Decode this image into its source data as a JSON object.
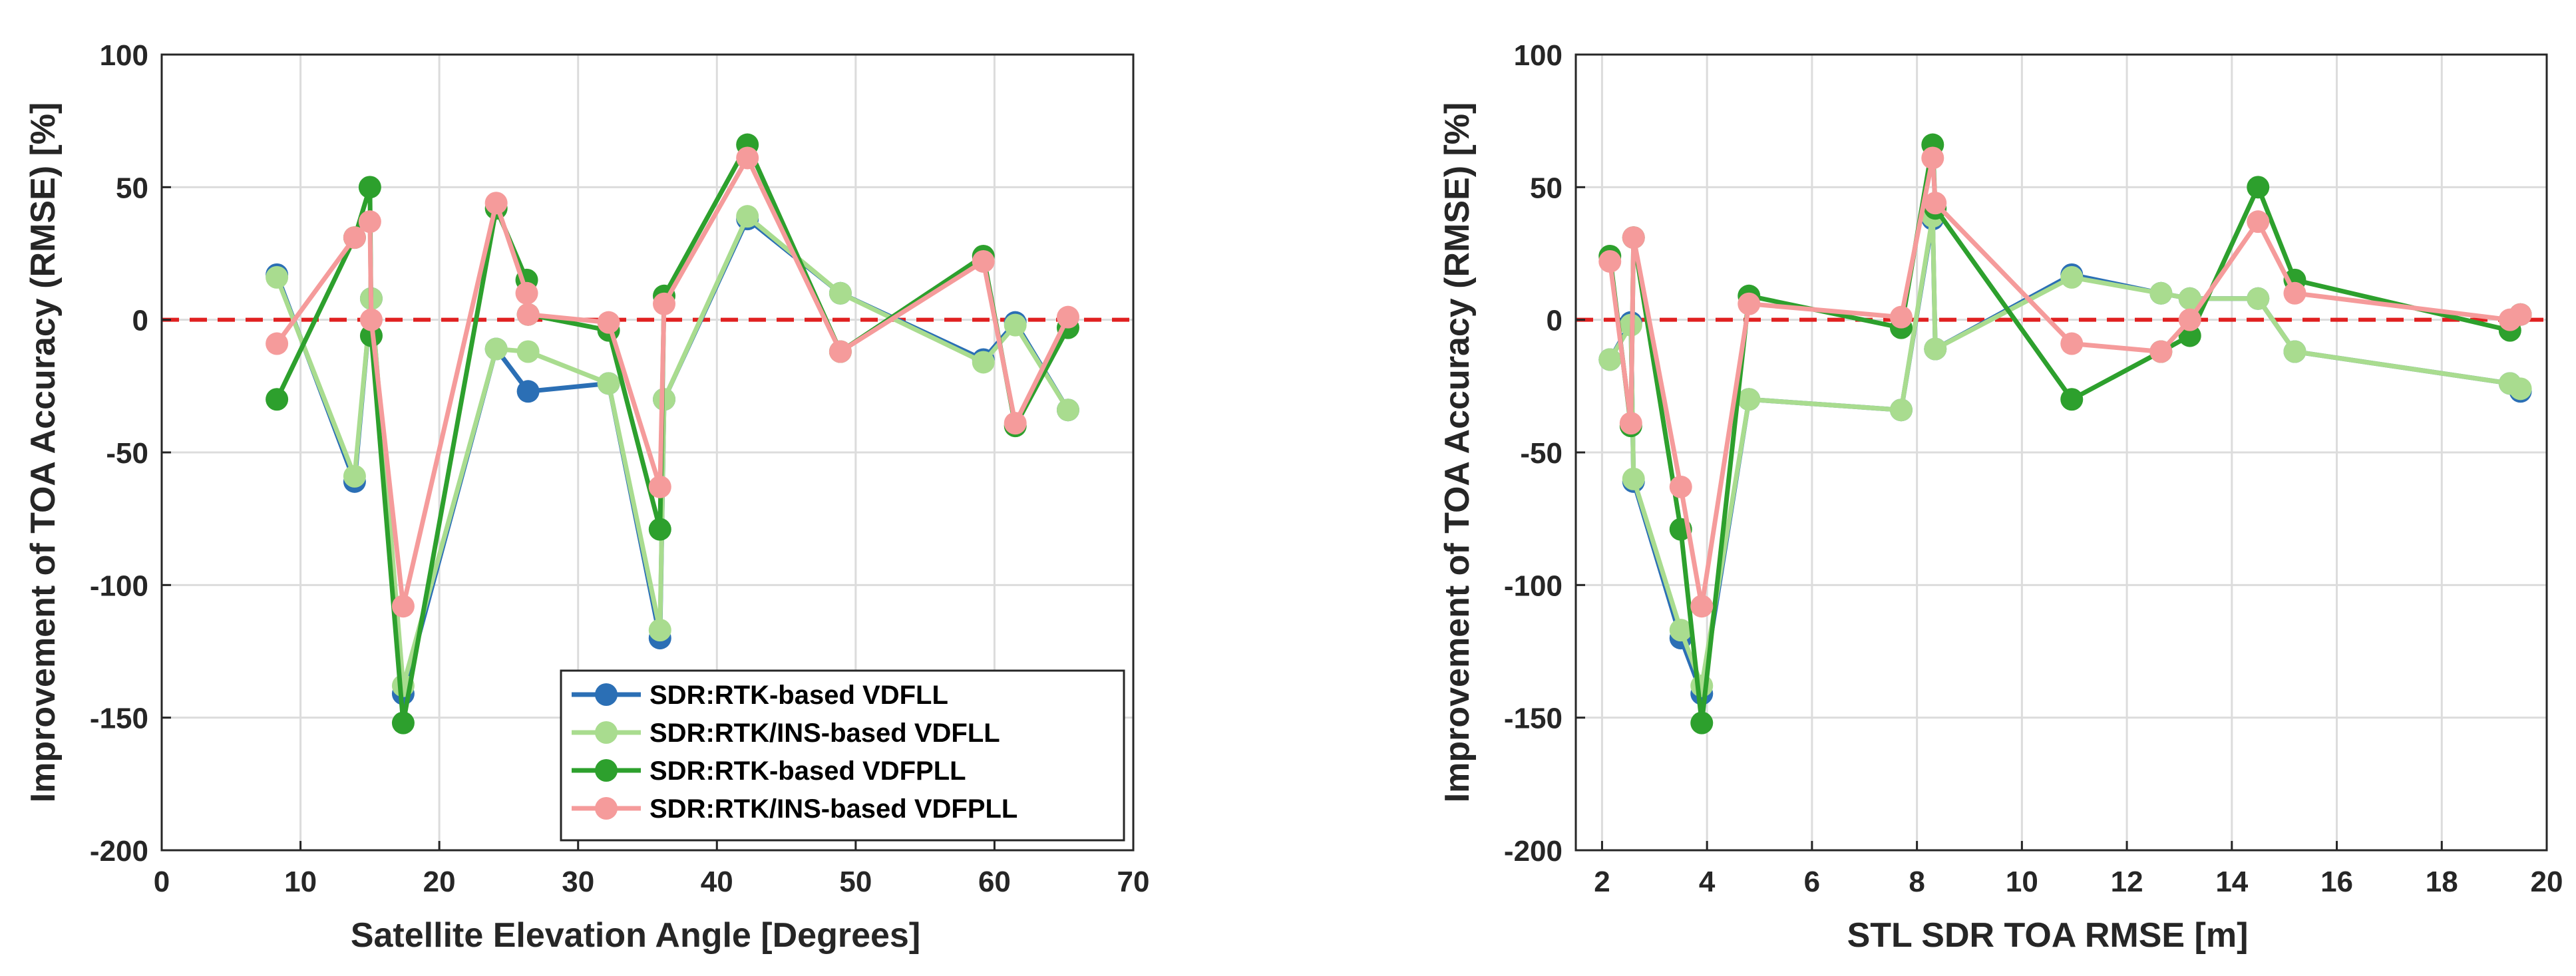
{
  "chart_data": [
    {
      "type": "line",
      "xlabel": "Satellite Elevation Angle [Degrees]",
      "ylabel": "Improvement of TOA Accuracy (RMSE) [%]",
      "xlim": [
        0,
        70
      ],
      "ylim": [
        -200,
        100
      ],
      "xticks": [
        "0",
        "10",
        "20",
        "30",
        "40",
        "50",
        "60",
        "70"
      ],
      "yticks": [
        "100",
        "50",
        "0",
        "-50",
        "-100",
        "-150",
        "-200"
      ],
      "grid": true,
      "reference_line": {
        "y": 0,
        "style": "dashed",
        "color": "#e02020"
      },
      "legend_position": "bottom-right",
      "series": [
        {
          "name": "SDR:RTK-based VDFLL",
          "color": "#2b6fb5",
          "x": [
            8.3,
            13.9,
            15.1,
            17.4,
            24.1,
            26.4,
            32.2,
            35.9,
            36.2,
            42.2,
            48.9,
            59.2,
            61.5,
            65.3
          ],
          "y": [
            17,
            -61,
            8,
            -141,
            -11,
            -27,
            -24,
            -120,
            -30,
            38,
            10,
            -15,
            -1,
            -34
          ]
        },
        {
          "name": "SDR:RTK/INS-based VDFLL",
          "color": "#a9dc8f",
          "x": [
            8.3,
            13.9,
            15.1,
            17.4,
            24.1,
            26.4,
            32.2,
            35.9,
            36.2,
            42.2,
            48.9,
            59.2,
            61.5,
            65.3
          ],
          "y": [
            16,
            -59,
            8,
            -138,
            -11,
            -12,
            -24,
            -117,
            -30,
            39,
            10,
            -16,
            -2,
            -34
          ]
        },
        {
          "name": "SDR:RTK-based VDFPLL",
          "color": "#2da02d",
          "x": [
            8.3,
            13.9,
            15.0,
            15.1,
            17.4,
            24.1,
            26.3,
            26.4,
            32.2,
            35.9,
            36.2,
            42.2,
            48.9,
            59.2,
            61.5,
            65.3
          ],
          "y": [
            -30,
            31,
            50,
            -6,
            -152,
            42,
            15,
            2,
            -4,
            -79,
            9,
            66,
            -12,
            24,
            -40,
            -3
          ]
        },
        {
          "name": "SDR:RTK/INS-based VDFPLL",
          "color": "#f59b9b",
          "x": [
            8.3,
            13.9,
            15.0,
            15.1,
            17.4,
            24.1,
            26.3,
            26.4,
            32.2,
            35.9,
            36.2,
            42.2,
            48.9,
            59.2,
            61.5,
            65.3
          ],
          "y": [
            -9,
            31,
            37,
            0,
            -108,
            44,
            10,
            2,
            -1,
            -63,
            6,
            61,
            -12,
            22,
            -39,
            1
          ]
        }
      ]
    },
    {
      "type": "line",
      "xlabel": "STL SDR TOA RMSE [m]",
      "ylabel": "Improvement of TOA Accuracy (RMSE) [%]",
      "xlim": [
        1.5,
        20
      ],
      "ylim": [
        -200,
        100
      ],
      "xticks": [
        "2",
        "4",
        "6",
        "8",
        "10",
        "12",
        "14",
        "16",
        "18",
        "20"
      ],
      "yticks": [
        "100",
        "50",
        "0",
        "-50",
        "-100",
        "-150",
        "-200"
      ],
      "grid": true,
      "reference_line": {
        "y": 0,
        "style": "dashed",
        "color": "#e02020"
      },
      "series": [
        {
          "name": "SDR:RTK-based VDFLL",
          "color": "#2b6fb5",
          "x": [
            2.15,
            2.55,
            2.6,
            3.5,
            3.9,
            4.8,
            7.7,
            8.3,
            8.35,
            10.95,
            12.65,
            13.2,
            14.5,
            15.2,
            19.3,
            19.5
          ],
          "y": [
            -15,
            -1,
            -61,
            -120,
            -141,
            -30,
            -34,
            38,
            -11,
            17,
            10,
            8,
            8,
            -12,
            -24,
            -27
          ]
        },
        {
          "name": "SDR:RTK/INS-based VDFLL",
          "color": "#a9dc8f",
          "x": [
            2.15,
            2.55,
            2.6,
            3.5,
            3.9,
            4.8,
            7.7,
            8.3,
            8.35,
            10.95,
            12.65,
            13.2,
            14.5,
            15.2,
            19.3,
            19.5
          ],
          "y": [
            -15,
            -2,
            -60,
            -117,
            -138,
            -30,
            -34,
            39,
            -11,
            16,
            10,
            8,
            8,
            -12,
            -24,
            -26
          ]
        },
        {
          "name": "SDR:RTK-based VDFPLL",
          "color": "#2da02d",
          "x": [
            2.15,
            2.55,
            2.6,
            3.5,
            3.9,
            4.8,
            7.7,
            8.3,
            8.35,
            10.95,
            12.65,
            13.2,
            14.5,
            15.2,
            19.3,
            19.5
          ],
          "y": [
            24,
            -40,
            31,
            -79,
            -152,
            9,
            -3,
            66,
            42,
            -30,
            -12,
            -6,
            50,
            15,
            -4,
            2
          ]
        },
        {
          "name": "SDR:RTK/INS-based VDFPLL",
          "color": "#f59b9b",
          "x": [
            2.15,
            2.55,
            2.6,
            3.5,
            3.9,
            4.8,
            7.7,
            8.3,
            8.35,
            10.95,
            12.65,
            13.2,
            14.5,
            15.2,
            19.3,
            19.5
          ],
          "y": [
            22,
            -39,
            31,
            -63,
            -108,
            6,
            1,
            61,
            44,
            -9,
            -12,
            0,
            37,
            10,
            0,
            2
          ]
        }
      ]
    }
  ]
}
